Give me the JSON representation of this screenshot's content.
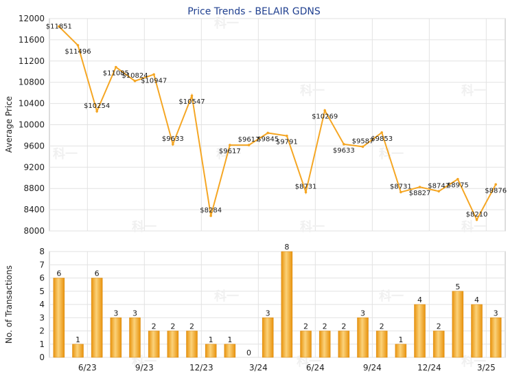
{
  "chart_data": [
    {
      "type": "line",
      "title": "Price Trends - BELAIR GDNS",
      "ylabel": "Average Price",
      "ylim": [
        8000,
        12000
      ],
      "yticks": [
        8000,
        8400,
        8800,
        9200,
        9600,
        10000,
        10400,
        10800,
        11200,
        11600,
        12000
      ],
      "grid": true,
      "line_color": "#f5a623",
      "values": [
        11851,
        11496,
        10254,
        11085,
        10824,
        10947,
        9633,
        10547,
        8284,
        9617,
        9617,
        9845,
        9791,
        8731,
        10269,
        9633,
        9587,
        9853,
        8731,
        8827,
        8747,
        8975,
        8210,
        8876
      ],
      "labels": [
        "$11851",
        "$11496",
        "$10254",
        "$11085",
        "$10824",
        "$10947",
        "$9633",
        "$10547",
        "$8284",
        "$9617",
        "$9617",
        "$9845",
        "$9791",
        "$8731",
        "$10269",
        "$9633",
        "$9587",
        "$9853",
        "$8731",
        "$8827",
        "$8747",
        "$8975",
        "$8210",
        "$8876"
      ]
    },
    {
      "type": "bar",
      "ylabel": "No. of Transactions",
      "ylim": [
        0,
        8
      ],
      "yticks": [
        0,
        1,
        2,
        3,
        4,
        5,
        6,
        7,
        8
      ],
      "grid": true,
      "bar_color": "#f5a623",
      "values": [
        6,
        1,
        6,
        3,
        3,
        2,
        2,
        2,
        1,
        1,
        0,
        3,
        8,
        2,
        2,
        2,
        3,
        2,
        1,
        4,
        2,
        5,
        4,
        3
      ],
      "xtick_labels": [
        "6/23",
        "9/23",
        "12/23",
        "3/24",
        "6/24",
        "9/24",
        "12/24",
        "3/25"
      ],
      "xtick_positions": [
        2,
        5,
        8,
        11,
        14,
        17,
        20,
        23
      ]
    }
  ],
  "watermark": "科一"
}
